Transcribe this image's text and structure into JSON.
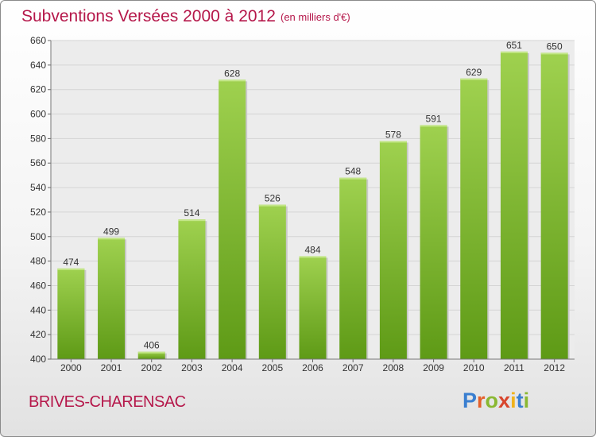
{
  "chart_data": {
    "type": "bar",
    "title": "Subventions Versées 2000 à 2012",
    "subtitle": "(en milliers d'€)",
    "categories": [
      "2000",
      "2001",
      "2002",
      "2003",
      "2004",
      "2005",
      "2006",
      "2007",
      "2008",
      "2009",
      "2010",
      "2011",
      "2012"
    ],
    "values": [
      474,
      499,
      406,
      514,
      628,
      526,
      484,
      548,
      578,
      591,
      629,
      651,
      650
    ],
    "ylim": [
      400,
      660
    ],
    "yticks": [
      400,
      420,
      440,
      460,
      480,
      500,
      520,
      540,
      560,
      580,
      600,
      620,
      640,
      660
    ],
    "grid": true,
    "bar_color_top": "#9fd14f",
    "bar_color_bottom": "#5e9a16"
  },
  "commune": "BRIVES-CHARENSAC",
  "logo": {
    "text": "Proxiti",
    "letter_colors": [
      "#3a7fd0",
      "#e4602a",
      "#8ab832",
      "#d8452c",
      "#f0b21b",
      "#3a7fd0",
      "#8ab832"
    ]
  }
}
